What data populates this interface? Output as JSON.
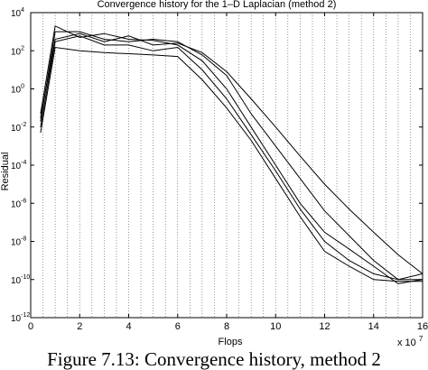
{
  "chart_data": {
    "type": "line",
    "title": "Convergence history for the 1–D Laplacian (method 2)",
    "xlabel": "Flops",
    "ylabel": "Residual",
    "x_multiplier": "x 10",
    "x_multiplier_exponent": "7",
    "xlim": [
      0,
      16
    ],
    "ylim": [
      1e-12,
      10000.0
    ],
    "yscale": "log",
    "grid": "vertical dotted",
    "legend": "none",
    "x_ticks": [
      0,
      2,
      4,
      6,
      8,
      10,
      12,
      14,
      16
    ],
    "x_tick_labels": [
      "0",
      "2",
      "4",
      "6",
      "8",
      "10",
      "12",
      "14",
      "16"
    ],
    "y_ticks": [
      1e-12,
      1e-10,
      1e-08,
      1e-06,
      0.0001,
      0.01,
      1,
      100.0,
      10000.0
    ],
    "y_tick_labels": [
      {
        "base": "10",
        "exp": "-12"
      },
      {
        "base": "10",
        "exp": "-10"
      },
      {
        "base": "10",
        "exp": "-8"
      },
      {
        "base": "10",
        "exp": "-6"
      },
      {
        "base": "10",
        "exp": "-4"
      },
      {
        "base": "10",
        "exp": "-2"
      },
      {
        "base": "10",
        "exp": "0"
      },
      {
        "base": "10",
        "exp": "2"
      },
      {
        "base": "10",
        "exp": "4"
      }
    ],
    "line_color": "#000000",
    "series": [
      {
        "x": [
          0.4,
          1.0,
          2.0,
          3.0,
          4.0,
          5.0,
          6.0,
          7.0,
          8.0,
          9.0,
          10.0,
          11.0,
          12.0,
          13.0,
          14.0,
          15.0,
          16.0
        ],
        "y": [
          0.05,
          2000,
          500,
          800,
          400,
          350,
          200,
          30,
          1,
          0.01,
          0.0001,
          1e-06,
          3e-08,
          4e-09,
          5e-10,
          6e-11,
          1e-10
        ]
      },
      {
        "x": [
          0.4,
          1.0,
          2.0,
          3.0,
          4.0,
          5.0,
          6.0,
          7.0,
          8.0,
          9.0,
          10.0,
          11.0,
          12.0,
          13.0,
          14.0,
          15.0,
          16.0
        ],
        "y": [
          0.01,
          300,
          600,
          200,
          200,
          100,
          150,
          10,
          0.3,
          0.004,
          5e-05,
          5e-07,
          1e-08,
          1e-09,
          2e-10,
          1e-10,
          1e-10
        ]
      },
      {
        "x": [
          0.4,
          1.0,
          2.0,
          3.0,
          4.0,
          5.0,
          6.0,
          7.0,
          8.0,
          9.0,
          10.0,
          11.0,
          12.0,
          13.0,
          14.0,
          15.0,
          16.0
        ],
        "y": [
          0.02,
          1000,
          1000,
          400,
          300,
          400,
          300,
          60,
          5,
          0.05,
          0.001,
          2e-05,
          4e-07,
          2e-08,
          1e-09,
          1e-10,
          2e-10
        ]
      },
      {
        "x": [
          0.4,
          1.0,
          2.0,
          3.0,
          4.0,
          5.0,
          6.0,
          7.0,
          8.0,
          9.0,
          10.0,
          11.0,
          12.0,
          13.0,
          14.0,
          15.0,
          16.0
        ],
        "y": [
          0.03,
          400,
          800,
          300,
          600,
          200,
          250,
          80,
          8,
          0.3,
          0.01,
          0.0003,
          1e-05,
          5e-07,
          3e-08,
          2e-09,
          2e-10
        ]
      },
      {
        "x": [
          0.4,
          1.0,
          2.0,
          3.0,
          4.0,
          5.0,
          6.0,
          7.0,
          8.0,
          9.0,
          10.0,
          11.0,
          12.0,
          13.0,
          14.0,
          15.0,
          16.0
        ],
        "y": [
          0.005,
          150,
          100,
          80,
          70,
          60,
          50,
          3,
          0.1,
          0.002,
          2e-05,
          2e-07,
          3e-09,
          5e-10,
          1e-10,
          8e-11,
          8e-11
        ]
      }
    ]
  },
  "caption": {
    "text": "Figure 7.13: Convergence history, method 2"
  }
}
